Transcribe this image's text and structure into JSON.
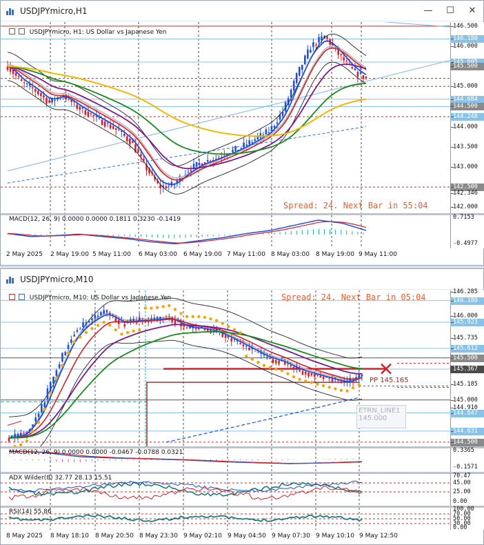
{
  "windows": [
    {
      "title": "USDJPYmicro,H1",
      "legend": "USDJPYmicro, H1:  US Dollar vs Japanese Yen",
      "spread": "Spread: 24. Next Bar in 55:04",
      "macd_label": "MACD(12, 26, 9) 0.0000 0.0000 0.1811 0.3230 -0.1419",
      "price_labels": [
        "146.500",
        "146.180",
        "146.000",
        "145.605",
        "145.500",
        "145.000",
        "144.684",
        "144.500",
        "144.248",
        "144.000",
        "143.500",
        "143.000",
        "142.500",
        "142.346",
        "142.000"
      ],
      "macd_scale": [
        "0.7153",
        "-0.4977"
      ],
      "time_labels": [
        "2 May 2025",
        "2 May 19:00",
        "5 May 11:00",
        "6 May 03:00",
        "6 May 19:00",
        "7 May 11:00",
        "8 May 03:00",
        "8 May 19:00",
        "9 May 11:00"
      ]
    },
    {
      "title": "USDJPYmicro,M10",
      "legend": "USDJPYmicro, M10:  US Dollar vs Japanese Yen",
      "spread": "Spread: 24. Next Bar in 05:04",
      "pp_label": "PP 145.165",
      "etrn_label": "ETRN_LINE1",
      "etrn_value": "145.000",
      "macd_label": "MACD(12, 26, 9) 0.0000 0.0000 -0.0467 -0.0788 0.0321",
      "adx_label": "ADX Wilder(8) 32.77 28.13 15.51",
      "rsi_label": "RSI(14) 55.86",
      "price_labels": [
        "146.285",
        "146.180",
        "146.000",
        "145.923",
        "145.735",
        "145.612",
        "145.500",
        "145.367",
        "145.185",
        "145.000",
        "144.910",
        "144.847",
        "144.631",
        "144.500"
      ],
      "macd_scale": [
        "0.3365",
        "-0.1571"
      ],
      "adx_scale": [
        "70.47",
        "45.00",
        "25.00",
        "0.00"
      ],
      "rsi_scale": [
        "100.00",
        "70.00",
        "50.00",
        "30.00",
        "0.00"
      ],
      "time_labels": [
        "8 May 2025",
        "8 May 18:10",
        "8 May 20:50",
        "8 May 23:30",
        "9 May 02:10",
        "9 May 04:50",
        "9 May 07:30",
        "9 May 10:10",
        "9 May 12:50"
      ]
    }
  ],
  "colors": {
    "bull_candle": "#1f4fd8",
    "bear_candle": "#d4202a",
    "spread_text": "#e0613a",
    "macd_line": "#1f4fd8",
    "signal_line": "#d4202a",
    "ma_green": "#1a8a1a",
    "ma_purple": "#7a1a8a",
    "ma_yellow": "#f2b700",
    "psar_orange": "#f7a400"
  },
  "icons": {
    "chart_icon": "chart-icon",
    "minimize": "minimize-icon",
    "maximize": "maximize-icon",
    "close": "close-icon"
  }
}
